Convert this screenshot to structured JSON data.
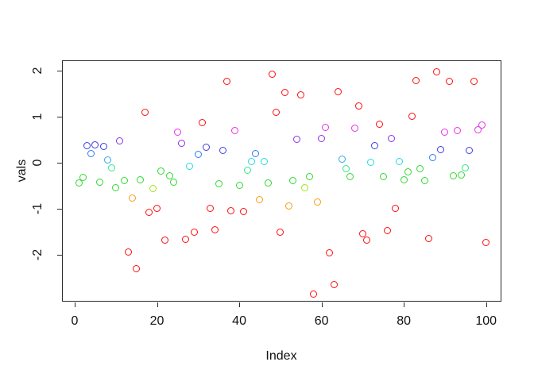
{
  "window": {
    "background": "#ffffff"
  },
  "chart_data": {
    "type": "scatter",
    "title": "",
    "xlabel": "Index",
    "ylabel": "vals",
    "x_ticks": [
      0,
      20,
      40,
      60,
      80,
      100
    ],
    "y_ticks": [
      -2,
      -1,
      0,
      1,
      2
    ],
    "xlim": [
      -3.1,
      103.7
    ],
    "ylim": [
      -3.03,
      2.22
    ],
    "grid": false,
    "legend": "none",
    "marker": "open-circle",
    "palette": {
      "red": "#FF0D0D",
      "orange": "#FF9912",
      "chartreuse": "#A3E317",
      "green": "#30D930",
      "spring": "#30E68C",
      "cyan": "#27D9E0",
      "sky": "#2EA6F2",
      "azure": "#2E7BF0",
      "blue": "#3B3BE8",
      "violet": "#8A30E8",
      "magenta": "#E830E8"
    },
    "series": [
      {
        "name": "vals",
        "points": [
          {
            "x": 1,
            "y": -0.45,
            "c": "green"
          },
          {
            "x": 2,
            "y": -0.32,
            "c": "green"
          },
          {
            "x": 3,
            "y": 0.37,
            "c": "blue"
          },
          {
            "x": 4,
            "y": 0.19,
            "c": "azure"
          },
          {
            "x": 5,
            "y": 0.38,
            "c": "blue"
          },
          {
            "x": 6,
            "y": -0.43,
            "c": "green"
          },
          {
            "x": 7,
            "y": 0.35,
            "c": "blue"
          },
          {
            "x": 8,
            "y": 0.05,
            "c": "sky"
          },
          {
            "x": 9,
            "y": -0.12,
            "c": "spring"
          },
          {
            "x": 10,
            "y": -0.54,
            "c": "green"
          },
          {
            "x": 11,
            "y": 0.47,
            "c": "violet"
          },
          {
            "x": 12,
            "y": -0.39,
            "c": "green"
          },
          {
            "x": 13,
            "y": -1.94,
            "c": "red"
          },
          {
            "x": 14,
            "y": -0.77,
            "c": "orange"
          },
          {
            "x": 15,
            "y": -2.31,
            "c": "red"
          },
          {
            "x": 16,
            "y": -0.37,
            "c": "green"
          },
          {
            "x": 17,
            "y": 1.1,
            "c": "red"
          },
          {
            "x": 18,
            "y": -1.08,
            "c": "red"
          },
          {
            "x": 19,
            "y": -0.56,
            "c": "chartreuse"
          },
          {
            "x": 20,
            "y": -0.99,
            "c": "red"
          },
          {
            "x": 21,
            "y": -0.18,
            "c": "green"
          },
          {
            "x": 22,
            "y": -1.69,
            "c": "red"
          },
          {
            "x": 23,
            "y": -0.28,
            "c": "green"
          },
          {
            "x": 24,
            "y": -0.42,
            "c": "green"
          },
          {
            "x": 25,
            "y": 0.67,
            "c": "magenta"
          },
          {
            "x": 26,
            "y": 0.42,
            "c": "violet"
          },
          {
            "x": 27,
            "y": -1.67,
            "c": "red"
          },
          {
            "x": 28,
            "y": -0.08,
            "c": "cyan"
          },
          {
            "x": 29,
            "y": -1.52,
            "c": "red"
          },
          {
            "x": 30,
            "y": 0.18,
            "c": "azure"
          },
          {
            "x": 31,
            "y": 0.87,
            "c": "red"
          },
          {
            "x": 32,
            "y": 0.34,
            "c": "blue"
          },
          {
            "x": 33,
            "y": -1.0,
            "c": "red"
          },
          {
            "x": 34,
            "y": -1.47,
            "c": "red"
          },
          {
            "x": 35,
            "y": -0.46,
            "c": "green"
          },
          {
            "x": 36,
            "y": 0.27,
            "c": "blue"
          },
          {
            "x": 37,
            "y": 1.77,
            "c": "red"
          },
          {
            "x": 38,
            "y": -1.04,
            "c": "red"
          },
          {
            "x": 39,
            "y": 0.69,
            "c": "magenta"
          },
          {
            "x": 40,
            "y": -0.5,
            "c": "green"
          },
          {
            "x": 41,
            "y": -1.07,
            "c": "red"
          },
          {
            "x": 42,
            "y": -0.17,
            "c": "spring"
          },
          {
            "x": 43,
            "y": 0.03,
            "c": "cyan"
          },
          {
            "x": 44,
            "y": 0.19,
            "c": "azure"
          },
          {
            "x": 45,
            "y": -0.8,
            "c": "orange"
          },
          {
            "x": 46,
            "y": 0.02,
            "c": "cyan"
          },
          {
            "x": 47,
            "y": -0.44,
            "c": "green"
          },
          {
            "x": 48,
            "y": 1.92,
            "c": "red"
          },
          {
            "x": 49,
            "y": 1.1,
            "c": "red"
          },
          {
            "x": 50,
            "y": -1.51,
            "c": "red"
          },
          {
            "x": 51,
            "y": 1.52,
            "c": "red"
          },
          {
            "x": 52,
            "y": -0.94,
            "c": "orange"
          },
          {
            "x": 53,
            "y": -0.39,
            "c": "green"
          },
          {
            "x": 54,
            "y": 0.5,
            "c": "violet"
          },
          {
            "x": 55,
            "y": 1.47,
            "c": "red"
          },
          {
            "x": 56,
            "y": -0.55,
            "c": "chartreuse"
          },
          {
            "x": 57,
            "y": -0.31,
            "c": "green"
          },
          {
            "x": 58,
            "y": -2.87,
            "c": "red"
          },
          {
            "x": 59,
            "y": -0.86,
            "c": "orange"
          },
          {
            "x": 60,
            "y": 0.52,
            "c": "violet"
          },
          {
            "x": 61,
            "y": 0.76,
            "c": "magenta"
          },
          {
            "x": 62,
            "y": -1.96,
            "c": "red"
          },
          {
            "x": 63,
            "y": -2.65,
            "c": "red"
          },
          {
            "x": 64,
            "y": 1.54,
            "c": "red"
          },
          {
            "x": 65,
            "y": 0.07,
            "c": "sky"
          },
          {
            "x": 66,
            "y": -0.13,
            "c": "spring"
          },
          {
            "x": 67,
            "y": -0.31,
            "c": "green"
          },
          {
            "x": 68,
            "y": 0.75,
            "c": "magenta"
          },
          {
            "x": 69,
            "y": 1.23,
            "c": "red"
          },
          {
            "x": 70,
            "y": -1.55,
            "c": "red"
          },
          {
            "x": 71,
            "y": -1.69,
            "c": "red"
          },
          {
            "x": 72,
            "y": 0.0,
            "c": "cyan"
          },
          {
            "x": 73,
            "y": 0.37,
            "c": "blue"
          },
          {
            "x": 74,
            "y": 0.84,
            "c": "red"
          },
          {
            "x": 75,
            "y": -0.3,
            "c": "green"
          },
          {
            "x": 76,
            "y": -1.48,
            "c": "red"
          },
          {
            "x": 77,
            "y": 0.53,
            "c": "violet"
          },
          {
            "x": 78,
            "y": -1.0,
            "c": "red"
          },
          {
            "x": 79,
            "y": 0.02,
            "c": "cyan"
          },
          {
            "x": 80,
            "y": -0.38,
            "c": "green"
          },
          {
            "x": 81,
            "y": -0.2,
            "c": "green"
          },
          {
            "x": 82,
            "y": 1.01,
            "c": "red"
          },
          {
            "x": 83,
            "y": 1.79,
            "c": "red"
          },
          {
            "x": 84,
            "y": -0.14,
            "c": "green"
          },
          {
            "x": 85,
            "y": -0.39,
            "c": "green"
          },
          {
            "x": 86,
            "y": -1.66,
            "c": "red"
          },
          {
            "x": 87,
            "y": 0.11,
            "c": "azure"
          },
          {
            "x": 88,
            "y": 1.97,
            "c": "red"
          },
          {
            "x": 89,
            "y": 0.28,
            "c": "blue"
          },
          {
            "x": 90,
            "y": 0.66,
            "c": "magenta"
          },
          {
            "x": 91,
            "y": 1.77,
            "c": "red"
          },
          {
            "x": 92,
            "y": -0.29,
            "c": "green"
          },
          {
            "x": 93,
            "y": 0.69,
            "c": "magenta"
          },
          {
            "x": 94,
            "y": -0.27,
            "c": "green"
          },
          {
            "x": 95,
            "y": -0.12,
            "c": "spring"
          },
          {
            "x": 96,
            "y": 0.27,
            "c": "blue"
          },
          {
            "x": 97,
            "y": 1.76,
            "c": "red"
          },
          {
            "x": 98,
            "y": 0.71,
            "c": "magenta"
          },
          {
            "x": 99,
            "y": 0.81,
            "c": "magenta"
          },
          {
            "x": 100,
            "y": -1.74,
            "c": "red"
          }
        ]
      }
    ]
  }
}
